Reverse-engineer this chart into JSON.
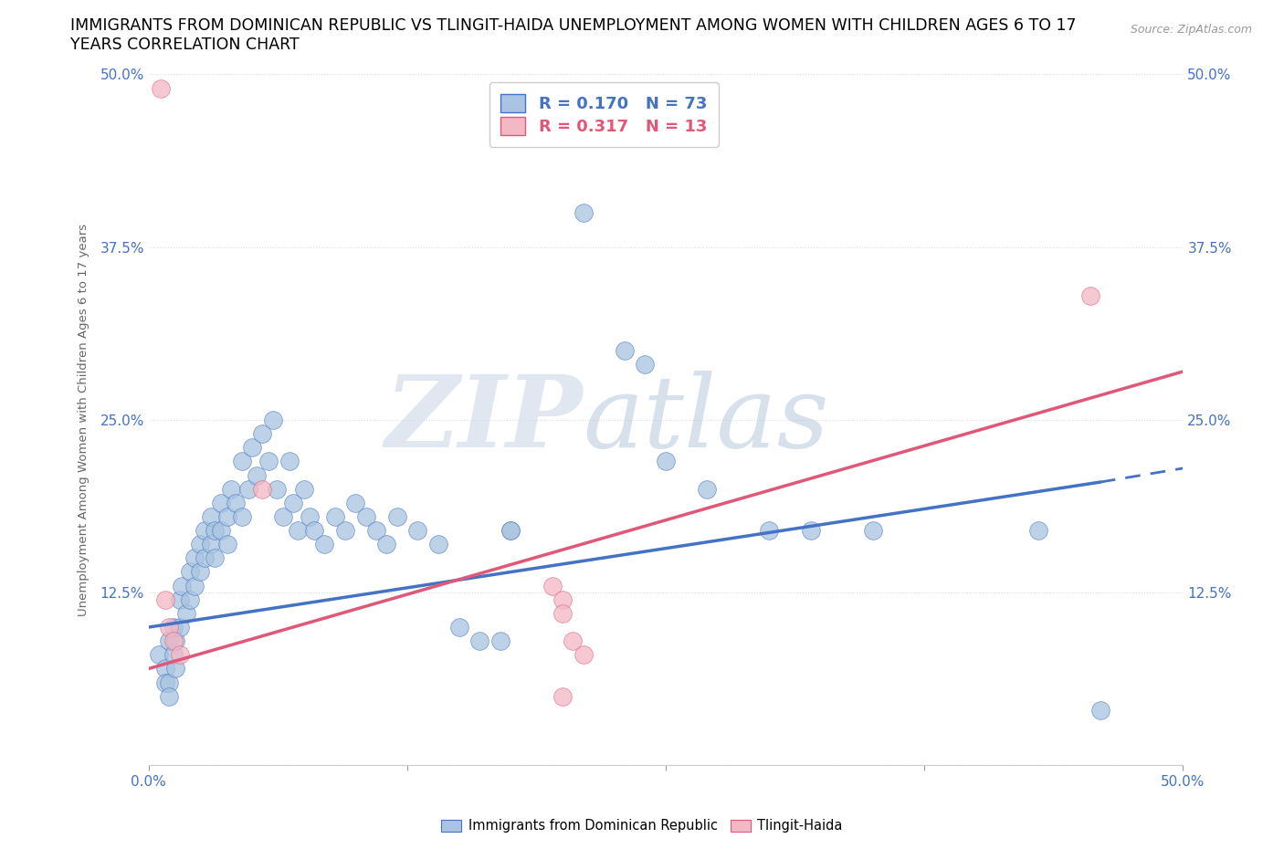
{
  "title_line1": "IMMIGRANTS FROM DOMINICAN REPUBLIC VS TLINGIT-HAIDA UNEMPLOYMENT AMONG WOMEN WITH CHILDREN AGES 6 TO 17",
  "title_line2": "YEARS CORRELATION CHART",
  "source": "Source: ZipAtlas.com",
  "ylabel": "Unemployment Among Women with Children Ages 6 to 17 years",
  "xlim": [
    0.0,
    0.5
  ],
  "ylim": [
    0.0,
    0.5
  ],
  "blue_r": 0.17,
  "blue_n": 73,
  "pink_r": 0.317,
  "pink_n": 13,
  "blue_color": "#a8c4e0",
  "pink_color": "#f4b8c4",
  "blue_line_color": "#4472c4",
  "pink_line_color": "#e05878",
  "blue_scatter": [
    [
      0.005,
      0.08
    ],
    [
      0.008,
      0.07
    ],
    [
      0.008,
      0.06
    ],
    [
      0.01,
      0.09
    ],
    [
      0.01,
      0.06
    ],
    [
      0.01,
      0.05
    ],
    [
      0.012,
      0.1
    ],
    [
      0.012,
      0.08
    ],
    [
      0.013,
      0.09
    ],
    [
      0.013,
      0.07
    ],
    [
      0.015,
      0.12
    ],
    [
      0.015,
      0.1
    ],
    [
      0.016,
      0.13
    ],
    [
      0.018,
      0.11
    ],
    [
      0.02,
      0.14
    ],
    [
      0.02,
      0.12
    ],
    [
      0.022,
      0.15
    ],
    [
      0.022,
      0.13
    ],
    [
      0.025,
      0.16
    ],
    [
      0.025,
      0.14
    ],
    [
      0.027,
      0.17
    ],
    [
      0.027,
      0.15
    ],
    [
      0.03,
      0.18
    ],
    [
      0.03,
      0.16
    ],
    [
      0.032,
      0.17
    ],
    [
      0.032,
      0.15
    ],
    [
      0.035,
      0.19
    ],
    [
      0.035,
      0.17
    ],
    [
      0.038,
      0.18
    ],
    [
      0.038,
      0.16
    ],
    [
      0.04,
      0.2
    ],
    [
      0.042,
      0.19
    ],
    [
      0.045,
      0.22
    ],
    [
      0.045,
      0.18
    ],
    [
      0.048,
      0.2
    ],
    [
      0.05,
      0.23
    ],
    [
      0.052,
      0.21
    ],
    [
      0.055,
      0.24
    ],
    [
      0.058,
      0.22
    ],
    [
      0.06,
      0.25
    ],
    [
      0.062,
      0.2
    ],
    [
      0.065,
      0.18
    ],
    [
      0.068,
      0.22
    ],
    [
      0.07,
      0.19
    ],
    [
      0.072,
      0.17
    ],
    [
      0.075,
      0.2
    ],
    [
      0.078,
      0.18
    ],
    [
      0.08,
      0.17
    ],
    [
      0.085,
      0.16
    ],
    [
      0.09,
      0.18
    ],
    [
      0.095,
      0.17
    ],
    [
      0.1,
      0.19
    ],
    [
      0.105,
      0.18
    ],
    [
      0.11,
      0.17
    ],
    [
      0.115,
      0.16
    ],
    [
      0.12,
      0.18
    ],
    [
      0.13,
      0.17
    ],
    [
      0.14,
      0.16
    ],
    [
      0.15,
      0.1
    ],
    [
      0.16,
      0.09
    ],
    [
      0.17,
      0.09
    ],
    [
      0.175,
      0.17
    ],
    [
      0.175,
      0.17
    ],
    [
      0.21,
      0.4
    ],
    [
      0.23,
      0.3
    ],
    [
      0.24,
      0.29
    ],
    [
      0.25,
      0.22
    ],
    [
      0.27,
      0.2
    ],
    [
      0.3,
      0.17
    ],
    [
      0.32,
      0.17
    ],
    [
      0.35,
      0.17
    ],
    [
      0.43,
      0.17
    ],
    [
      0.46,
      0.04
    ]
  ],
  "pink_scatter": [
    [
      0.006,
      0.49
    ],
    [
      0.008,
      0.12
    ],
    [
      0.01,
      0.1
    ],
    [
      0.012,
      0.09
    ],
    [
      0.015,
      0.08
    ],
    [
      0.055,
      0.2
    ],
    [
      0.195,
      0.13
    ],
    [
      0.2,
      0.12
    ],
    [
      0.2,
      0.11
    ],
    [
      0.205,
      0.09
    ],
    [
      0.21,
      0.08
    ],
    [
      0.455,
      0.34
    ],
    [
      0.2,
      0.05
    ]
  ],
  "background_color": "#ffffff",
  "grid_color": "#dddddd",
  "legend_labels": [
    "Immigrants from Dominican Republic",
    "Tlingit-Haida"
  ],
  "title_fontsize": 12.5,
  "axis_label_fontsize": 9.5,
  "tick_fontsize": 11,
  "legend_fontsize": 13,
  "blue_line_start_x": 0.0,
  "blue_line_start_y": 0.1,
  "blue_line_end_solid_x": 0.46,
  "blue_line_end_y_at_max": 0.205,
  "blue_line_end_dash_x": 0.5,
  "blue_line_end_dash_y": 0.215,
  "pink_line_start_x": 0.0,
  "pink_line_start_y": 0.07,
  "pink_line_end_x": 0.5,
  "pink_line_end_y": 0.285
}
